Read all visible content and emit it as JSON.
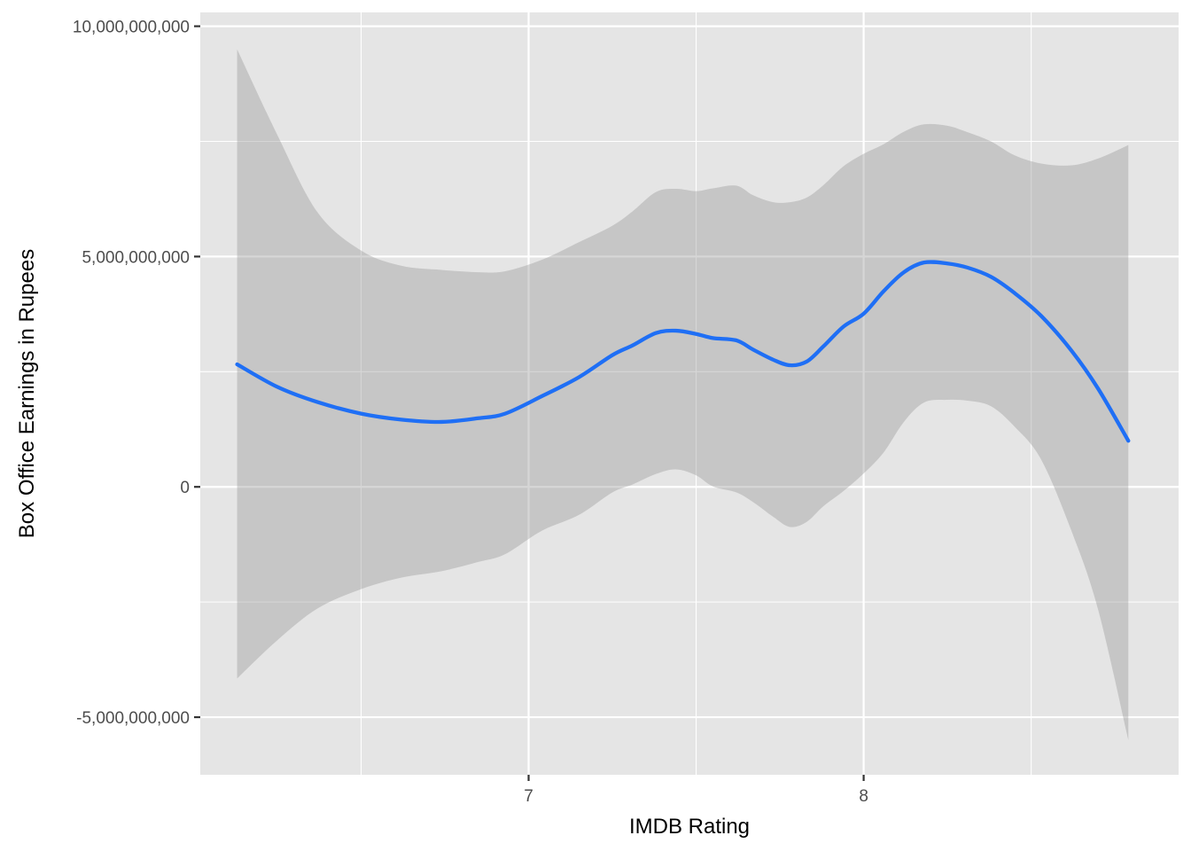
{
  "chart_data": {
    "type": "line",
    "title": "",
    "xlabel": "IMDB Rating",
    "ylabel": "Box Office Earnings in Rupees",
    "xlim": [
      6.02,
      8.94
    ],
    "ylim": [
      -6250000000,
      10300000000
    ],
    "x_ticks": [
      {
        "value": 7,
        "label": "7"
      },
      {
        "value": 8,
        "label": "8"
      }
    ],
    "x_minor_ticks": [
      6.5,
      7.5,
      8.5
    ],
    "y_ticks": [
      {
        "value": 10000000000,
        "label": "10,000,000,000"
      },
      {
        "value": 5000000000,
        "label": "5,000,000,000"
      },
      {
        "value": 0,
        "label": "0"
      },
      {
        "value": -5000000000,
        "label": "-5,000,000,000"
      }
    ],
    "y_minor_ticks": [
      7500000000,
      2500000000,
      -2500000000
    ],
    "grid": true,
    "panel_background": "#e5e5e5",
    "grid_color": "#ffffff",
    "series": [
      {
        "kind": "smooth",
        "color": "#1f6ff5",
        "ribbon_color": "#999999",
        "points": [
          {
            "x": 6.13,
            "y": 2660000000,
            "ymin": -4160000000,
            "ymax": 9500000000
          },
          {
            "x": 6.25,
            "y": 2170000000,
            "ymin": -3330000000,
            "ymax": 7640000000
          },
          {
            "x": 6.37,
            "y": 1840000000,
            "ymin": -2640000000,
            "ymax": 5960000000
          },
          {
            "x": 6.5,
            "y": 1590000000,
            "ymin": -2220000000,
            "ymax": 5130000000
          },
          {
            "x": 6.62,
            "y": 1460000000,
            "ymin": -1970000000,
            "ymax": 4800000000
          },
          {
            "x": 6.74,
            "y": 1410000000,
            "ymin": -1830000000,
            "ymax": 4710000000
          },
          {
            "x": 6.85,
            "y": 1490000000,
            "ymin": -1630000000,
            "ymax": 4660000000
          },
          {
            "x": 6.93,
            "y": 1590000000,
            "ymin": -1460000000,
            "ymax": 4680000000
          },
          {
            "x": 7.04,
            "y": 1970000000,
            "ymin": -950000000,
            "ymax": 4930000000
          },
          {
            "x": 7.15,
            "y": 2380000000,
            "ymin": -610000000,
            "ymax": 5310000000
          },
          {
            "x": 7.25,
            "y": 2860000000,
            "ymin": -120000000,
            "ymax": 5670000000
          },
          {
            "x": 7.31,
            "y": 3070000000,
            "ymin": 50000000,
            "ymax": 5980000000
          },
          {
            "x": 7.38,
            "y": 3340000000,
            "ymin": 280000000,
            "ymax": 6400000000
          },
          {
            "x": 7.44,
            "y": 3390000000,
            "ymin": 380000000,
            "ymax": 6470000000
          },
          {
            "x": 7.5,
            "y": 3320000000,
            "ymin": 250000000,
            "ymax": 6420000000
          },
          {
            "x": 7.55,
            "y": 3230000000,
            "ymin": 10000000,
            "ymax": 6480000000
          },
          {
            "x": 7.62,
            "y": 3180000000,
            "ymin": -120000000,
            "ymax": 6540000000
          },
          {
            "x": 7.67,
            "y": 2980000000,
            "ymin": -330000000,
            "ymax": 6330000000
          },
          {
            "x": 7.73,
            "y": 2760000000,
            "ymin": -650000000,
            "ymax": 6180000000
          },
          {
            "x": 7.78,
            "y": 2640000000,
            "ymin": -870000000,
            "ymax": 6180000000
          },
          {
            "x": 7.83,
            "y": 2720000000,
            "ymin": -760000000,
            "ymax": 6280000000
          },
          {
            "x": 7.88,
            "y": 3050000000,
            "ymin": -420000000,
            "ymax": 6550000000
          },
          {
            "x": 7.94,
            "y": 3480000000,
            "ymin": -90000000,
            "ymax": 6960000000
          },
          {
            "x": 8.0,
            "y": 3760000000,
            "ymin": 290000000,
            "ymax": 7230000000
          },
          {
            "x": 8.06,
            "y": 4250000000,
            "ymin": 750000000,
            "ymax": 7440000000
          },
          {
            "x": 8.12,
            "y": 4660000000,
            "ymin": 1410000000,
            "ymax": 7710000000
          },
          {
            "x": 8.18,
            "y": 4870000000,
            "ymin": 1830000000,
            "ymax": 7870000000
          },
          {
            "x": 8.25,
            "y": 4850000000,
            "ymin": 1890000000,
            "ymax": 7840000000
          },
          {
            "x": 8.31,
            "y": 4760000000,
            "ymin": 1870000000,
            "ymax": 7700000000
          },
          {
            "x": 8.38,
            "y": 4560000000,
            "ymin": 1750000000,
            "ymax": 7500000000
          },
          {
            "x": 8.45,
            "y": 4210000000,
            "ymin": 1310000000,
            "ymax": 7200000000
          },
          {
            "x": 8.53,
            "y": 3710000000,
            "ymin": 590000000,
            "ymax": 7020000000
          },
          {
            "x": 8.62,
            "y": 2960000000,
            "ymin": -950000000,
            "ymax": 6980000000
          },
          {
            "x": 8.7,
            "y": 2130000000,
            "ymin": -2670000000,
            "ymax": 7130000000
          },
          {
            "x": 8.79,
            "y": 1000000000,
            "ymin": -5500000000,
            "ymax": 7420000000
          }
        ]
      }
    ]
  }
}
